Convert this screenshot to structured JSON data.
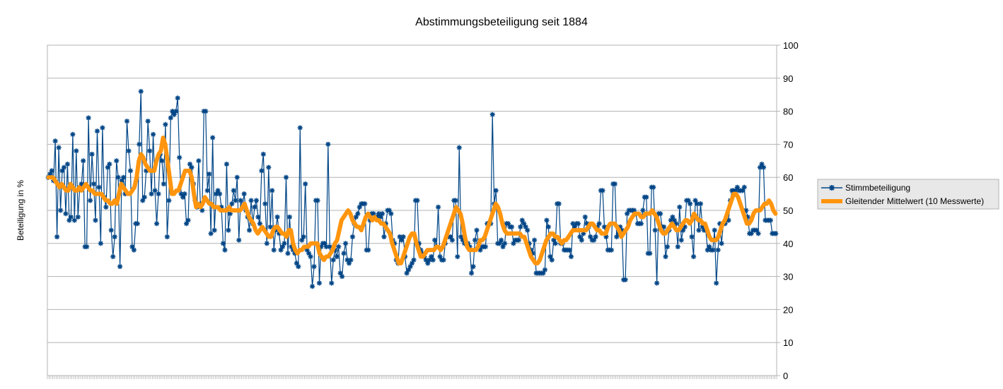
{
  "chart_data": {
    "type": "line",
    "title": "Abstimmungsbeteiligung seit 1884",
    "ylabel": "Beteiligung in %",
    "xlabel": "",
    "ylim": [
      0,
      100
    ],
    "yticks": [
      "0",
      "10",
      "20",
      "30",
      "40",
      "50",
      "60",
      "70",
      "80",
      "90",
      "100"
    ],
    "grid": true,
    "legend_position": "right",
    "series": [
      {
        "name": "Stimmbeteiligung",
        "color": "#004586",
        "marker": "asterisk",
        "values": [
          60,
          61,
          62,
          59,
          71,
          42,
          69,
          50,
          62,
          63,
          49,
          64,
          47,
          48,
          73,
          47,
          68,
          48,
          57,
          58,
          65,
          39,
          39,
          78,
          53,
          67,
          58,
          47,
          74,
          57,
          40,
          75,
          54,
          51,
          63,
          64,
          44,
          36,
          42,
          65,
          60,
          33,
          59,
          60,
          55,
          77,
          68,
          62,
          39,
          38,
          46,
          46,
          70,
          86,
          53,
          54,
          62,
          77,
          68,
          55,
          73,
          56,
          46,
          55,
          67,
          65,
          58,
          76,
          42,
          53,
          78,
          80,
          79,
          80,
          84,
          66,
          55,
          54,
          55,
          46,
          47,
          64,
          63,
          58,
          53,
          51,
          65,
          52,
          50,
          80,
          80,
          56,
          61,
          43,
          72,
          44,
          55,
          56,
          55,
          51,
          40,
          38,
          64,
          44,
          49,
          52,
          56,
          53,
          60,
          41,
          53,
          51,
          55,
          50,
          48,
          44,
          53,
          46,
          51,
          53,
          48,
          46,
          62,
          67,
          52,
          40,
          63,
          45,
          56,
          38,
          44,
          48,
          43,
          38,
          39,
          40,
          60,
          37,
          48,
          39,
          38,
          37,
          34,
          33,
          75,
          41,
          42,
          58,
          38,
          37,
          36,
          27,
          33,
          53,
          53,
          28,
          39,
          40,
          40,
          39,
          70,
          39,
          28,
          35,
          38,
          36,
          39,
          31,
          30,
          37,
          40,
          35,
          34,
          35,
          42,
          46,
          48,
          49,
          51,
          52,
          52,
          52,
          38,
          38,
          47,
          49,
          49,
          48,
          48,
          49,
          48,
          49,
          42,
          46,
          50,
          50,
          49,
          41,
          40,
          35,
          34,
          42,
          41,
          42,
          36,
          31,
          32,
          33,
          34,
          35,
          53,
          53,
          40,
          38,
          37,
          36,
          35,
          34,
          35,
          36,
          35,
          41,
          39,
          51,
          36,
          35,
          35,
          40,
          42,
          42,
          42,
          41,
          53,
          53,
          36,
          69,
          42,
          41,
          40,
          40,
          40,
          39,
          31,
          33,
          41,
          44,
          40,
          38,
          39,
          39,
          39,
          46,
          46,
          46,
          79,
          52,
          56,
          40,
          40,
          41,
          39,
          40,
          46,
          46,
          45,
          45,
          40,
          41,
          41,
          41,
          45,
          47,
          46,
          45,
          44,
          40,
          38,
          37,
          41,
          31,
          31,
          31,
          31,
          31,
          32,
          47,
          45,
          36,
          35,
          41,
          40,
          52,
          52,
          40,
          40,
          38,
          38,
          38,
          38,
          36,
          46,
          45,
          46,
          46,
          42,
          41,
          43,
          48,
          46,
          45,
          42,
          41,
          41,
          42,
          45,
          46,
          56,
          56,
          45,
          42,
          38,
          38,
          38,
          58,
          58,
          42,
          43,
          45,
          44,
          29,
          29,
          49,
          50,
          50,
          50,
          50,
          49,
          46,
          46,
          46,
          50,
          54,
          54,
          37,
          37,
          57,
          57,
          44,
          28,
          49,
          49,
          45,
          45,
          36,
          39,
          44,
          47,
          48,
          47,
          46,
          39,
          51,
          41,
          44,
          45,
          53,
          53,
          52,
          42,
          36,
          53,
          52,
          44,
          52,
          45,
          44,
          44,
          38,
          39,
          38,
          38,
          44,
          28,
          38,
          46,
          40,
          46,
          46,
          47,
          47,
          53,
          56,
          56,
          56,
          57,
          56,
          56,
          56,
          57,
          50,
          48,
          43,
          43,
          44,
          44,
          44,
          43,
          63,
          64,
          63,
          47,
          47,
          47,
          47,
          43,
          43,
          43
        ]
      },
      {
        "name": "Gleitender Mittelwert (10 Messwerte)",
        "color": "#ff950e",
        "values": [
          60,
          60,
          60,
          59,
          58,
          57,
          58,
          57,
          56,
          56,
          58,
          57,
          56,
          56,
          57,
          56,
          57,
          58,
          57,
          56,
          56,
          55,
          55,
          55,
          55,
          54,
          53,
          53,
          52,
          52,
          53,
          52,
          55,
          58,
          57,
          56,
          55,
          55,
          56,
          57,
          60,
          65,
          67,
          66,
          64,
          63,
          62,
          62,
          62,
          65,
          67,
          68,
          72,
          70,
          65,
          60,
          55,
          55,
          56,
          56,
          58,
          60,
          62,
          62,
          62,
          60,
          55,
          51,
          52,
          51,
          52,
          54,
          53,
          52,
          52,
          51,
          51,
          51,
          50,
          50,
          50,
          50,
          51,
          50,
          50,
          50,
          50,
          50,
          51,
          52,
          50,
          48,
          47,
          46,
          44,
          43,
          44,
          45,
          44,
          43,
          42,
          42,
          44,
          45,
          45,
          44,
          43,
          43,
          42,
          44,
          44,
          40,
          38,
          37,
          38,
          38,
          39,
          39,
          39,
          40,
          40,
          40,
          40,
          37,
          36,
          35,
          36,
          36,
          37,
          38,
          40,
          41,
          44,
          47,
          48,
          49,
          50,
          49,
          47,
          46,
          45,
          45,
          44,
          46,
          48,
          49,
          48,
          47,
          48,
          47,
          47,
          46,
          46,
          45,
          44,
          43,
          40,
          38,
          36,
          34,
          34,
          36,
          38,
          40,
          42,
          43,
          43,
          40,
          38,
          36,
          36,
          37,
          38,
          38,
          38,
          38,
          39,
          39,
          38,
          39,
          41,
          43,
          45,
          47,
          49,
          51,
          50,
          49,
          46,
          42,
          39,
          38,
          38,
          38,
          38,
          39,
          41,
          41,
          42,
          44,
          46,
          48,
          50,
          52,
          51,
          49,
          46,
          44,
          43,
          43,
          43,
          43,
          43,
          43,
          43,
          42,
          42,
          40,
          38,
          36,
          35,
          34,
          34,
          35,
          37,
          39,
          41,
          42,
          43,
          43,
          42,
          42,
          41,
          40,
          41,
          41,
          42,
          43,
          44,
          44,
          44,
          44,
          44,
          44,
          44,
          45,
          46,
          46,
          45,
          44,
          44,
          43,
          43,
          43,
          45,
          46,
          46,
          46,
          45,
          44,
          42,
          43,
          44,
          45,
          47,
          48,
          49,
          49,
          49,
          48,
          48,
          49,
          49,
          49,
          50,
          49,
          48,
          46,
          44,
          43,
          43,
          44,
          45,
          46,
          45,
          44,
          44,
          45,
          46,
          47,
          47,
          46,
          47,
          49,
          48,
          47,
          47,
          46,
          46,
          44,
          42,
          41,
          41,
          41,
          42,
          44,
          46,
          47,
          49,
          51,
          53,
          55,
          55,
          54,
          52,
          50,
          48,
          46,
          46,
          47,
          49,
          50,
          50,
          50,
          51,
          52,
          52,
          53,
          52,
          50,
          49
        ]
      }
    ]
  }
}
